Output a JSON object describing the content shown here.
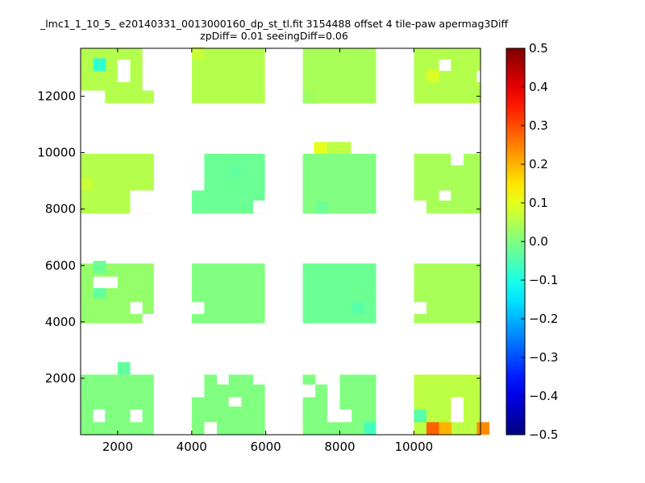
{
  "chart_data": {
    "type": "heatmap",
    "title_line1": "_lmc1_1_10_5_ e20140331_0013000160_dp_st_tl.fit 3154488 offset 4 tile-paw apermag3Diff",
    "title_line2": "zpDiff= 0.01 seeingDiff=0.06",
    "xlabel": "",
    "ylabel": "",
    "xlim": [
      1000,
      11800
    ],
    "ylim": [
      0,
      13700
    ],
    "x_ticks": [
      2000,
      4000,
      6000,
      8000,
      10000
    ],
    "y_ticks": [
      2000,
      4000,
      6000,
      8000,
      10000,
      12000
    ],
    "colorbar": {
      "colormap": "jet",
      "range": [
        -0.5,
        0.5
      ],
      "ticks": [
        "0.5",
        "0.4",
        "0.3",
        "0.2",
        "0.1",
        "0.0",
        "−0.1",
        "−0.2",
        "−0.3",
        "−0.4",
        "−0.5"
      ]
    },
    "cell_size": [
      340,
      445
    ],
    "default_value": 0.0,
    "blocks": [
      {
        "x0": 1000,
        "x1": 2980,
        "y0": 0,
        "y1": 2130,
        "value": 0.0
      },
      {
        "x0": 4000,
        "x1": 5980,
        "y0": 0,
        "y1": 2130,
        "value": 0.0
      },
      {
        "x0": 7000,
        "x1": 8980,
        "y0": 0,
        "y1": 2130,
        "value": 0.0
      },
      {
        "x0": 10000,
        "x1": 11800,
        "y0": 0,
        "y1": 2130,
        "value": 0.06
      },
      {
        "x0": 1000,
        "x1": 2980,
        "y0": 3950,
        "y1": 6070,
        "value": 0.02
      },
      {
        "x0": 4000,
        "x1": 5980,
        "y0": 3950,
        "y1": 6070,
        "value": 0.0
      },
      {
        "x0": 7000,
        "x1": 8980,
        "y0": 3950,
        "y1": 6070,
        "value": -0.02
      },
      {
        "x0": 10000,
        "x1": 11800,
        "y0": 3950,
        "y1": 6070,
        "value": 0.04
      },
      {
        "x0": 1000,
        "x1": 2980,
        "y0": 7840,
        "y1": 9960,
        "value": 0.05
      },
      {
        "x0": 4000,
        "x1": 5980,
        "y0": 7840,
        "y1": 9960,
        "value": -0.02
      },
      {
        "x0": 7000,
        "x1": 8980,
        "y0": 7840,
        "y1": 9960,
        "value": 0.0
      },
      {
        "x0": 10000,
        "x1": 11800,
        "y0": 7840,
        "y1": 9960,
        "value": 0.04
      },
      {
        "x0": 1000,
        "x1": 2980,
        "y0": 11750,
        "y1": 13700,
        "value": 0.05
      },
      {
        "x0": 4000,
        "x1": 5980,
        "y0": 11750,
        "y1": 13700,
        "value": 0.05
      },
      {
        "x0": 7000,
        "x1": 8980,
        "y0": 11750,
        "y1": 13700,
        "value": 0.04
      },
      {
        "x0": 10000,
        "x1": 11800,
        "y0": 11750,
        "y1": 13700,
        "value": 0.05
      },
      {
        "x0": 7300,
        "x1": 7650,
        "y0": 9960,
        "y1": 10380,
        "value": 0.1
      },
      {
        "x0": 7650,
        "x1": 8300,
        "y0": 9960,
        "y1": 10380,
        "value": 0.06
      }
    ],
    "cells": [
      {
        "x": 1340,
        "y": 12900,
        "value": -0.08
      },
      {
        "x": 10340,
        "y": 0,
        "value": 0.28
      },
      {
        "x": 10680,
        "y": 0,
        "value": 0.2
      },
      {
        "x": 11700,
        "y": 0,
        "value": 0.24
      },
      {
        "x": 10000,
        "y": 445,
        "value": -0.04
      },
      {
        "x": 8660,
        "y": 0,
        "value": -0.06
      },
      {
        "x": 6680,
        "y": 0,
        "value": 0.04
      },
      {
        "x": 3680,
        "y": 0,
        "value": 0.03
      },
      {
        "x": 1340,
        "y": 4840,
        "value": -0.03
      },
      {
        "x": 8320,
        "y": 4280,
        "value": -0.04
      },
      {
        "x": 2000,
        "y": 2130,
        "value": -0.03
      },
      {
        "x": 5000,
        "y": 9100,
        "value": -0.03
      },
      {
        "x": 7340,
        "y": 7840,
        "value": -0.02
      },
      {
        "x": 1340,
        "y": 5720,
        "value": -0.02
      },
      {
        "x": 1000,
        "y": 8660,
        "value": 0.07
      },
      {
        "x": 4000,
        "y": 13300,
        "value": 0.07
      },
      {
        "x": 10340,
        "y": 12500,
        "value": 0.09
      },
      {
        "x": 7000,
        "y": 11750,
        "value": 0.03
      }
    ],
    "gaps": [
      {
        "x0": 2980,
        "x1": 4000,
        "y0": 12200,
        "y1": 13700
      },
      {
        "x0": 3320,
        "x1": 3990,
        "y0": 13250,
        "y1": 13700
      },
      {
        "x0": 5980,
        "x1": 7000,
        "y0": 12200,
        "y1": 13700
      },
      {
        "x0": 8980,
        "x1": 10000,
        "y0": 11750,
        "y1": 13700
      },
      {
        "x0": 2980,
        "x1": 4000,
        "y0": 7840,
        "y1": 9960
      },
      {
        "x0": 5980,
        "x1": 7000,
        "y0": 7840,
        "y1": 9960
      },
      {
        "x0": 8980,
        "x1": 10000,
        "y0": 7840,
        "y1": 9960
      },
      {
        "x0": 2980,
        "x1": 4000,
        "y0": 3950,
        "y1": 6070
      },
      {
        "x0": 5980,
        "x1": 7000,
        "y0": 3950,
        "y1": 6070
      },
      {
        "x0": 8980,
        "x1": 10000,
        "y0": 3950,
        "y1": 6070
      },
      {
        "x0": 2980,
        "x1": 4000,
        "y0": 0,
        "y1": 2130
      },
      {
        "x0": 5980,
        "x1": 7000,
        "y0": 0,
        "y1": 2130
      },
      {
        "x0": 8980,
        "x1": 10000,
        "y0": 0,
        "y1": 2130
      },
      {
        "x0": 1000,
        "x1": 1000,
        "y0": 0,
        "y1": 0
      },
      {
        "x0": 2670,
        "x1": 2980,
        "y0": 12200,
        "y1": 13700
      },
      {
        "x0": 6700,
        "x1": 7000,
        "y0": 11750,
        "y1": 13700
      },
      {
        "x0": 9340,
        "x1": 9660,
        "y0": 11750,
        "y1": 12200
      },
      {
        "x0": 1000,
        "x1": 1660,
        "y0": 11750,
        "y1": 12200
      },
      {
        "x0": 3660,
        "x1": 4000,
        "y0": 2130,
        "y1": 3950
      }
    ],
    "holes": [
      {
        "x0": 2000,
        "x1": 2340,
        "y0": 12500,
        "y1": 13300
      },
      {
        "x0": 10680,
        "x1": 11000,
        "y0": 12900,
        "y1": 13300
      },
      {
        "x0": 11700,
        "x1": 11800,
        "y0": 12500,
        "y1": 12900
      },
      {
        "x0": 1000,
        "x1": 1660,
        "y0": 11750,
        "y1": 11750
      },
      {
        "x0": 2340,
        "x1": 2980,
        "y0": 7840,
        "y1": 8660
      },
      {
        "x0": 1340,
        "x1": 2000,
        "y0": 7840,
        "y1": 7840
      },
      {
        "x0": 2000,
        "x1": 2340,
        "y0": 8660,
        "y1": 8660
      },
      {
        "x0": 4000,
        "x1": 4340,
        "y0": 8660,
        "y1": 9960
      },
      {
        "x0": 5660,
        "x1": 5980,
        "y0": 7840,
        "y1": 8300
      },
      {
        "x0": 5980,
        "x1": 5980,
        "y0": 7840,
        "y1": 7840
      },
      {
        "x0": 7000,
        "x1": 7000,
        "y0": 7840,
        "y1": 7840
      },
      {
        "x0": 10000,
        "x1": 10340,
        "y0": 7840,
        "y1": 8300
      },
      {
        "x0": 10680,
        "x1": 11000,
        "y0": 8300,
        "y1": 8660
      },
      {
        "x0": 11000,
        "x1": 11340,
        "y0": 9550,
        "y1": 9960
      },
      {
        "x0": 1340,
        "x1": 2000,
        "y0": 5200,
        "y1": 5600
      },
      {
        "x0": 2340,
        "x1": 2670,
        "y0": 4280,
        "y1": 4700
      },
      {
        "x0": 2670,
        "x1": 2980,
        "y0": 3950,
        "y1": 4280
      },
      {
        "x0": 4000,
        "x1": 4340,
        "y0": 4280,
        "y1": 4700
      },
      {
        "x0": 10000,
        "x1": 10340,
        "y0": 4280,
        "y1": 4700
      },
      {
        "x0": 8980,
        "x1": 9300,
        "y0": 3950,
        "y1": 3950
      },
      {
        "x0": 1000,
        "x1": 1000,
        "y0": 0,
        "y1": 0
      },
      {
        "x0": 1340,
        "x1": 1660,
        "y0": 445,
        "y1": 890
      },
      {
        "x0": 2340,
        "x1": 2670,
        "y0": 445,
        "y1": 890
      },
      {
        "x0": 4000,
        "x1": 4340,
        "y0": 1330,
        "y1": 2130
      },
      {
        "x0": 4680,
        "x1": 5000,
        "y0": 1780,
        "y1": 2130
      },
      {
        "x0": 5000,
        "x1": 5340,
        "y0": 1000,
        "y1": 1330
      },
      {
        "x0": 5660,
        "x1": 5980,
        "y0": 1780,
        "y1": 2130
      },
      {
        "x0": 7340,
        "x1": 7660,
        "y0": 1780,
        "y1": 2130
      },
      {
        "x0": 7660,
        "x1": 8000,
        "y0": 445,
        "y1": 2130
      },
      {
        "x0": 7000,
        "x1": 7340,
        "y0": 1330,
        "y1": 1780
      },
      {
        "x0": 8000,
        "x1": 8320,
        "y0": 445,
        "y1": 890
      },
      {
        "x0": 11000,
        "x1": 11340,
        "y0": 445,
        "y1": 1330
      },
      {
        "x0": 2980,
        "x1": 3320,
        "y0": 0,
        "y1": 1000
      },
      {
        "x0": 4340,
        "x1": 4680,
        "y0": 0,
        "y1": 445
      }
    ]
  }
}
